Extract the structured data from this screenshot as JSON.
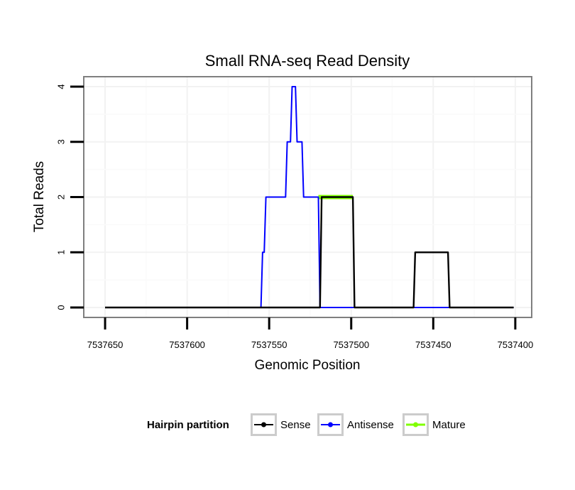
{
  "chart_data": {
    "type": "line",
    "title": "Small RNA-seq Read Density",
    "xlabel": "Genomic Position",
    "ylabel": "Total Reads",
    "xlim": [
      7537663,
      7537390
    ],
    "ylim": [
      -0.18,
      4.18
    ],
    "x_reversed": true,
    "x_ticks": [
      7537650,
      7537600,
      7537550,
      7537500,
      7537450,
      7537400
    ],
    "x_tick_labels": [
      "7537650",
      "7537600",
      "7537550",
      "7537500",
      "7537450",
      "7537400"
    ],
    "y_ticks": [
      0,
      1,
      2,
      3,
      4
    ],
    "y_tick_labels": [
      "0",
      "1",
      "2",
      "3",
      "4"
    ],
    "grid": true,
    "legend_position": "bottom",
    "legend_title": "Hairpin partition",
    "series": [
      {
        "name": "Sense",
        "color": "#000000",
        "x": [
          7537650,
          7537519,
          7537518,
          7537499,
          7537498,
          7537462,
          7537461,
          7537441,
          7537440,
          7537401
        ],
        "y": [
          0,
          0,
          2,
          2,
          0,
          0,
          1,
          1,
          0,
          0
        ]
      },
      {
        "name": "Antisense",
        "color": "#0000ff",
        "x": [
          7537650,
          7537555,
          7537554,
          7537553,
          7537552,
          7537540,
          7537539,
          7537537,
          7537536,
          7537534,
          7537533,
          7537530,
          7537529,
          7537520,
          7537519,
          7537498,
          7537497,
          7537441,
          7537440,
          7537401
        ],
        "y": [
          0,
          0,
          1,
          1,
          2,
          2,
          3,
          3,
          4,
          4,
          3,
          3,
          2,
          2,
          0,
          0,
          0,
          0,
          0,
          0
        ]
      },
      {
        "name": "Mature",
        "color": "#80ff00",
        "x": [
          7537520,
          7537499
        ],
        "y": [
          2,
          2
        ]
      }
    ]
  }
}
